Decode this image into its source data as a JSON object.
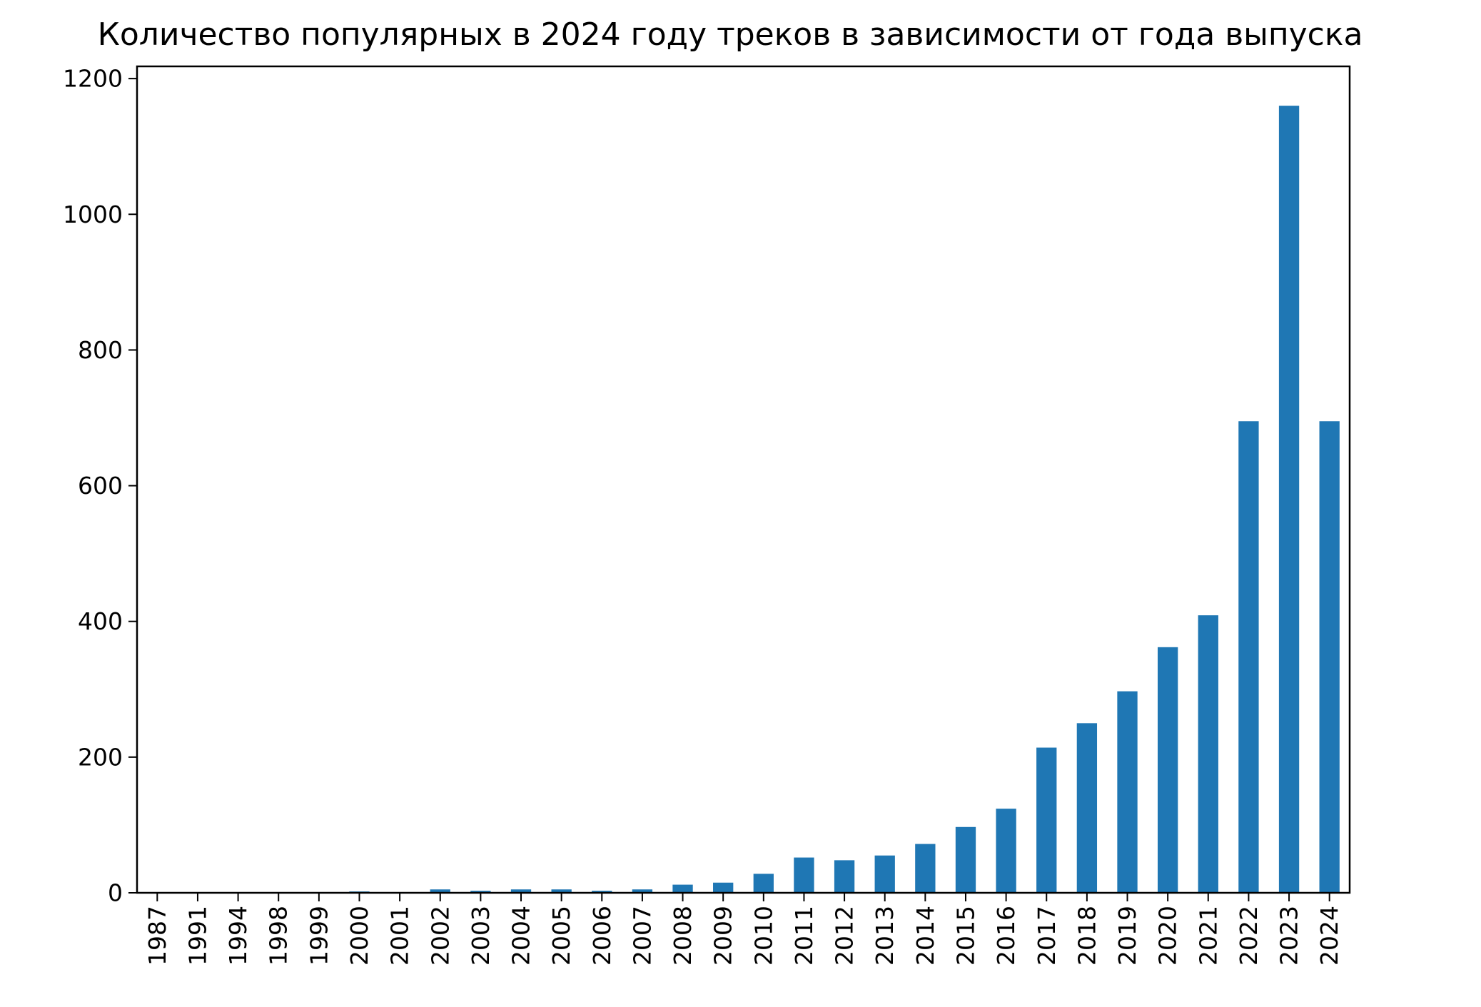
{
  "chart_data": {
    "type": "bar",
    "title": "Количество популярных в 2024 году треков в зависимости от года выпуска",
    "xlabel": "",
    "ylabel": "",
    "categories": [
      "1987",
      "1991",
      "1994",
      "1998",
      "1999",
      "2000",
      "2001",
      "2002",
      "2003",
      "2004",
      "2005",
      "2006",
      "2007",
      "2008",
      "2009",
      "2010",
      "2011",
      "2012",
      "2013",
      "2014",
      "2015",
      "2016",
      "2017",
      "2018",
      "2019",
      "2020",
      "2021",
      "2022",
      "2023",
      "2024"
    ],
    "values": [
      1,
      1,
      1,
      1,
      1,
      2,
      1,
      5,
      3,
      5,
      5,
      3,
      5,
      12,
      15,
      28,
      52,
      48,
      55,
      72,
      97,
      124,
      214,
      250,
      297,
      362,
      409,
      695,
      1160,
      695
    ],
    "ylim": [
      0,
      1218
    ],
    "yticks": [
      0,
      200,
      400,
      600,
      800,
      1000,
      1200
    ],
    "grid": false,
    "legend": "none",
    "bar_color": "#1f77b4"
  }
}
